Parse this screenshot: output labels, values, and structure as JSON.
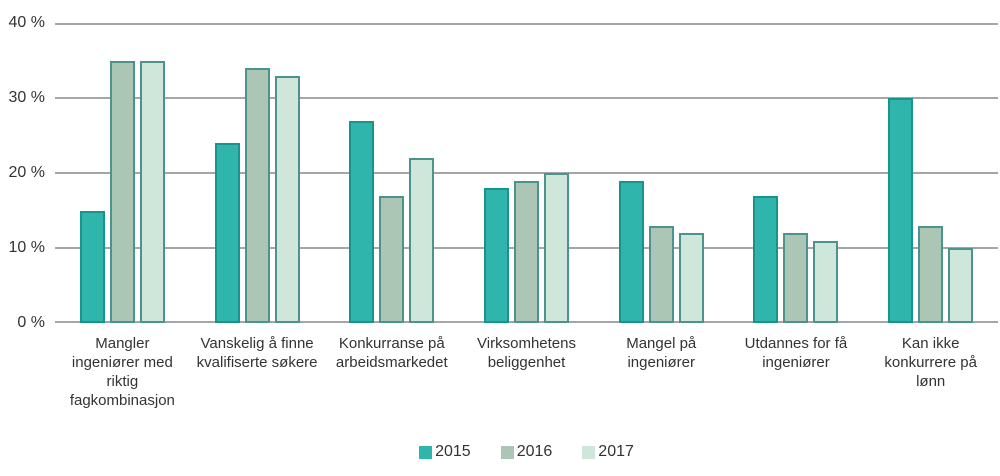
{
  "chart_data": {
    "type": "bar",
    "title": "",
    "categories": [
      "Mangler ingeniører med riktig fagkombinasjon",
      "Vanskelig å finne kvalifiserte søkere",
      "Konkurranse på arbeidsmarkedet",
      "Virksomhetens beliggenhet",
      "Mangel på ingeniører",
      "Utdannes for få ingeniører",
      "Kan ikke konkurrere på lønn"
    ],
    "series": [
      {
        "name": "2015",
        "values": [
          15,
          24,
          27,
          18,
          19,
          17,
          30
        ],
        "fill": "#2fb5ac",
        "border": "#17948b"
      },
      {
        "name": "2016",
        "values": [
          35,
          34,
          17,
          19,
          13,
          12,
          13
        ],
        "fill": "#acc6b6",
        "border": "#4b938c"
      },
      {
        "name": "2017",
        "values": [
          35,
          33,
          22,
          20,
          12,
          11,
          10
        ],
        "fill": "#cfe6db",
        "border": "#4b938c"
      }
    ],
    "y_ticks": [
      {
        "value": 0,
        "label": "0 %"
      },
      {
        "value": 10,
        "label": "10 %"
      },
      {
        "value": 20,
        "label": "20 %"
      },
      {
        "value": 30,
        "label": "30 %"
      },
      {
        "value": 40,
        "label": "40 %"
      }
    ],
    "ylim": [
      0,
      40
    ],
    "xlabel": "",
    "ylabel": "",
    "grid": true,
    "legend_position": "bottom",
    "colors": {
      "gridline": "#a6a6a6",
      "text": "#333333",
      "background": "#ffffff"
    }
  }
}
